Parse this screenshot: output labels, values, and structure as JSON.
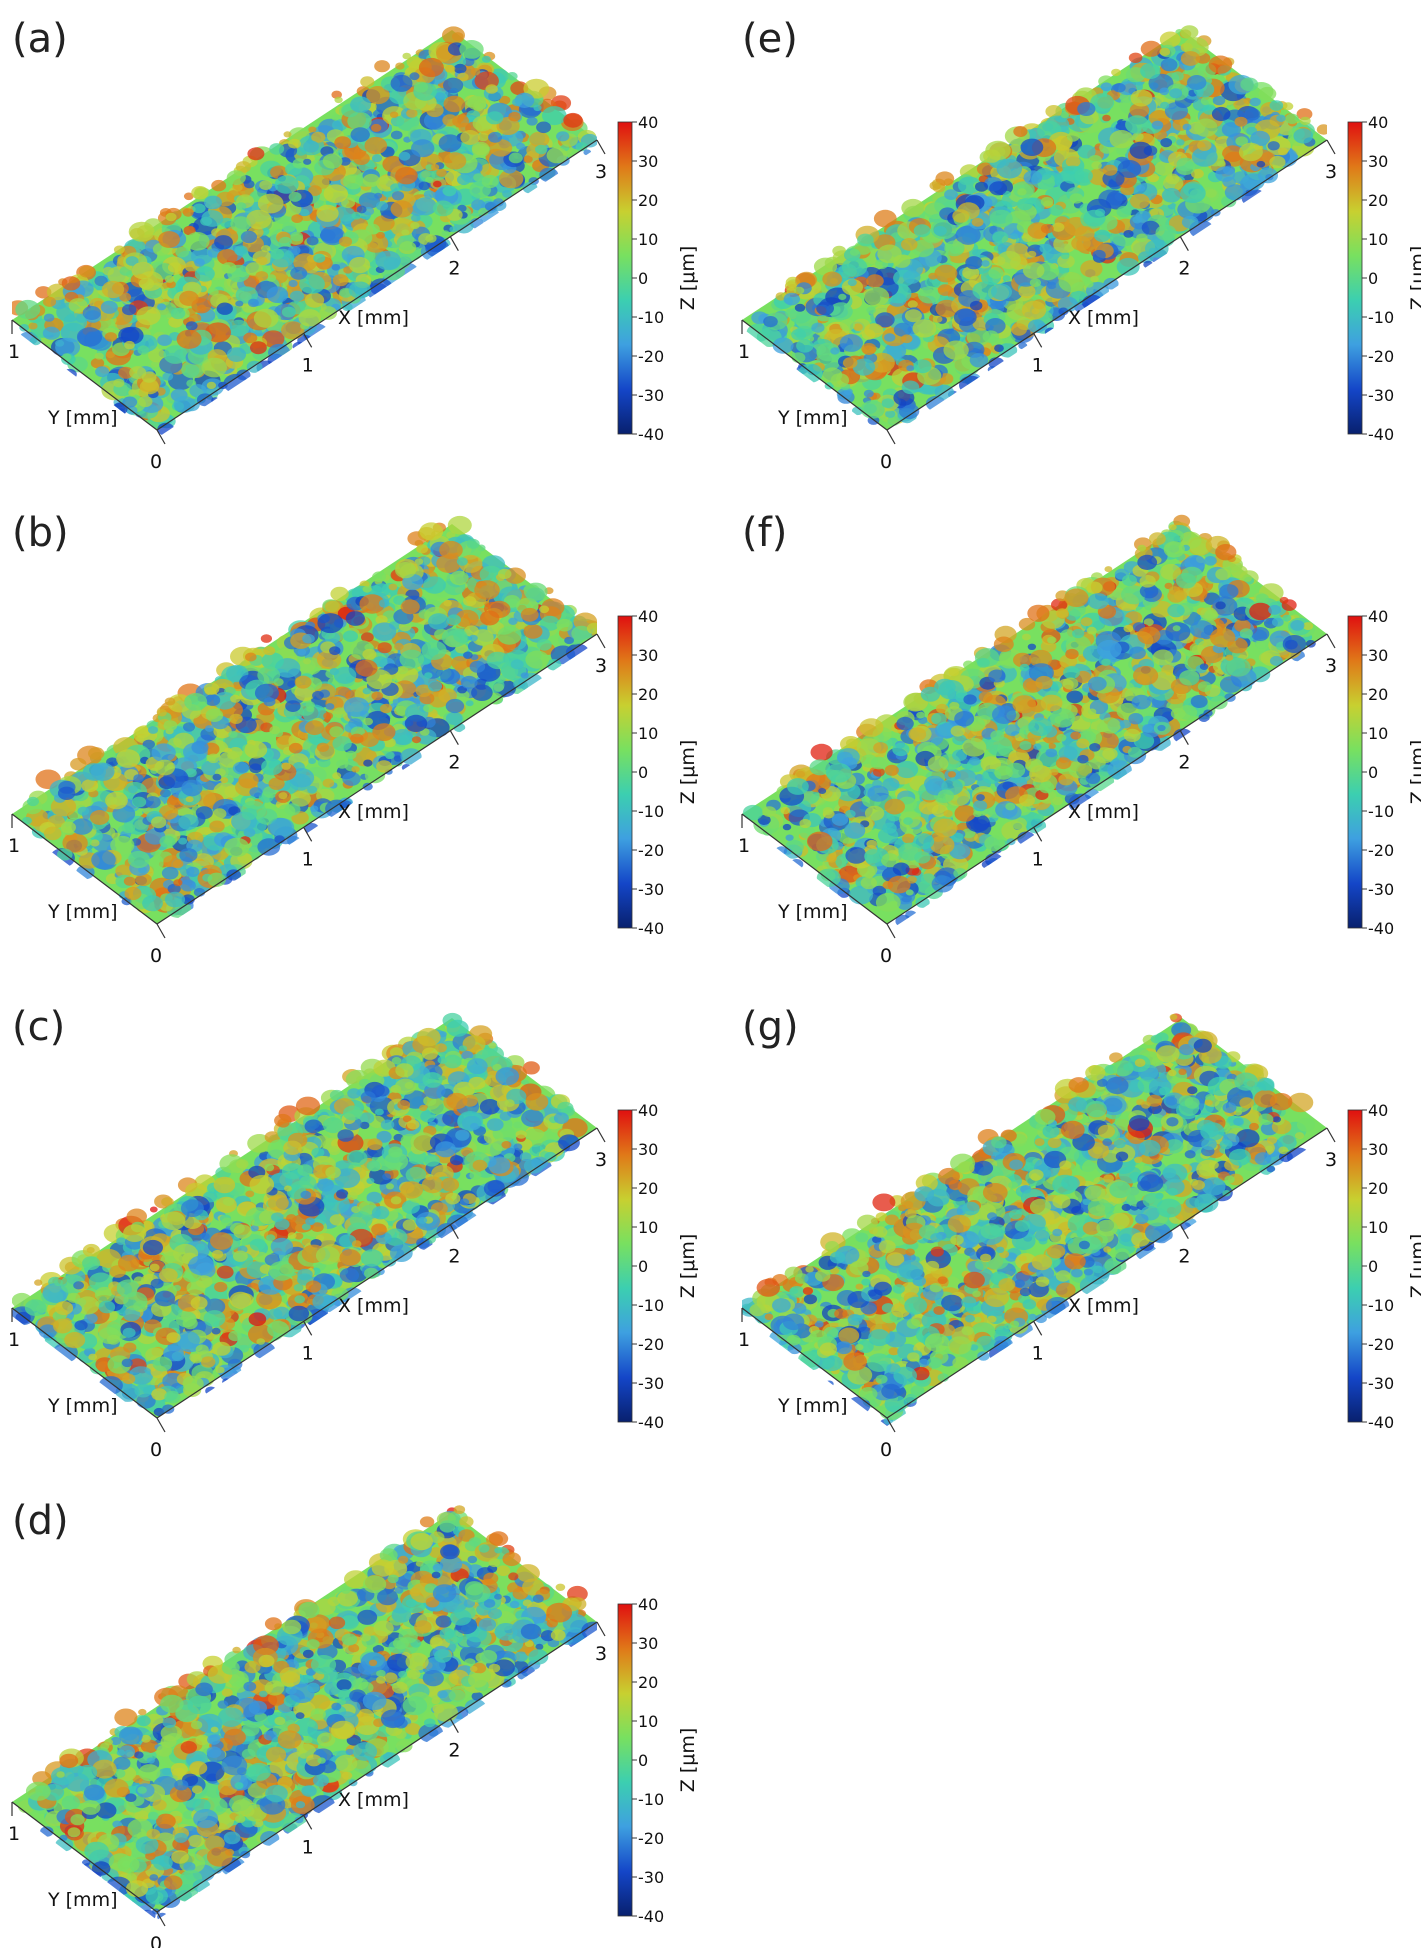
{
  "colors": {
    "colormap": [
      "#08206e",
      "#1446c8",
      "#3ea0e0",
      "#3ccfb0",
      "#78e060",
      "#c8d030",
      "#e07818",
      "#e01010"
    ],
    "axis": "#333333"
  },
  "chart_data": [
    {
      "type": "heatmap",
      "label": "(a)",
      "xlabel": "X [mm]",
      "ylabel": "Y [mm]",
      "zlabel": "Z [μm]",
      "x_ticks": [
        "0",
        "1",
        "2",
        "3"
      ],
      "y_ticks": [
        "0",
        "1"
      ],
      "xlim": [
        0,
        3
      ],
      "ylim": [
        0,
        1
      ],
      "zlim": [
        -40,
        40
      ],
      "z_ticks": [
        "-40",
        "-30",
        "-20",
        "-10",
        "0",
        "10",
        "20",
        "30",
        "40"
      ]
    },
    {
      "type": "heatmap",
      "label": "(b)",
      "xlabel": "X [mm]",
      "ylabel": "Y [mm]",
      "zlabel": "Z [μm]",
      "x_ticks": [
        "0",
        "1",
        "2",
        "3"
      ],
      "y_ticks": [
        "0",
        "1"
      ],
      "xlim": [
        0,
        3
      ],
      "ylim": [
        0,
        1
      ],
      "zlim": [
        -40,
        40
      ],
      "z_ticks": [
        "-40",
        "-30",
        "-20",
        "-10",
        "0",
        "10",
        "20",
        "30",
        "40"
      ]
    },
    {
      "type": "heatmap",
      "label": "(c)",
      "xlabel": "X [mm]",
      "ylabel": "Y [mm]",
      "zlabel": "Z [μm]",
      "x_ticks": [
        "0",
        "1",
        "2",
        "3"
      ],
      "y_ticks": [
        "0",
        "1"
      ],
      "xlim": [
        0,
        3
      ],
      "ylim": [
        0,
        1
      ],
      "zlim": [
        -40,
        40
      ],
      "z_ticks": [
        "-40",
        "-30",
        "-20",
        "-10",
        "0",
        "10",
        "20",
        "30",
        "40"
      ]
    },
    {
      "type": "heatmap",
      "label": "(d)",
      "xlabel": "X [mm]",
      "ylabel": "Y [mm]",
      "zlabel": "Z [μm]",
      "x_ticks": [
        "0",
        "1",
        "2",
        "3"
      ],
      "y_ticks": [
        "0",
        "1"
      ],
      "xlim": [
        0,
        3
      ],
      "ylim": [
        0,
        1
      ],
      "zlim": [
        -40,
        40
      ],
      "z_ticks": [
        "-40",
        "-30",
        "-20",
        "-10",
        "0",
        "10",
        "20",
        "30",
        "40"
      ]
    },
    {
      "type": "heatmap",
      "label": "(e)",
      "xlabel": "X [mm]",
      "ylabel": "Y [mm]",
      "zlabel": "Z [μm]",
      "x_ticks": [
        "0",
        "1",
        "2",
        "3"
      ],
      "y_ticks": [
        "0",
        "1"
      ],
      "xlim": [
        0,
        3
      ],
      "ylim": [
        0,
        1
      ],
      "zlim": [
        -40,
        40
      ],
      "z_ticks": [
        "-40",
        "-30",
        "-20",
        "-10",
        "0",
        "10",
        "20",
        "30",
        "40"
      ]
    },
    {
      "type": "heatmap",
      "label": "(f)",
      "xlabel": "X [mm]",
      "ylabel": "Y [mm]",
      "zlabel": "Z [μm]",
      "x_ticks": [
        "0",
        "1",
        "2",
        "3"
      ],
      "y_ticks": [
        "0",
        "1"
      ],
      "xlim": [
        0,
        3
      ],
      "ylim": [
        0,
        1
      ],
      "zlim": [
        -40,
        40
      ],
      "z_ticks": [
        "-40",
        "-30",
        "-20",
        "-10",
        "0",
        "10",
        "20",
        "30",
        "40"
      ]
    },
    {
      "type": "heatmap",
      "label": "(g)",
      "xlabel": "X [mm]",
      "ylabel": "Y [mm]",
      "zlabel": "Z [μm]",
      "x_ticks": [
        "0",
        "1",
        "2",
        "3"
      ],
      "y_ticks": [
        "0",
        "1"
      ],
      "xlim": [
        0,
        3
      ],
      "ylim": [
        0,
        1
      ],
      "zlim": [
        -40,
        40
      ],
      "z_ticks": [
        "-40",
        "-30",
        "-20",
        "-10",
        "0",
        "10",
        "20",
        "30",
        "40"
      ]
    }
  ]
}
